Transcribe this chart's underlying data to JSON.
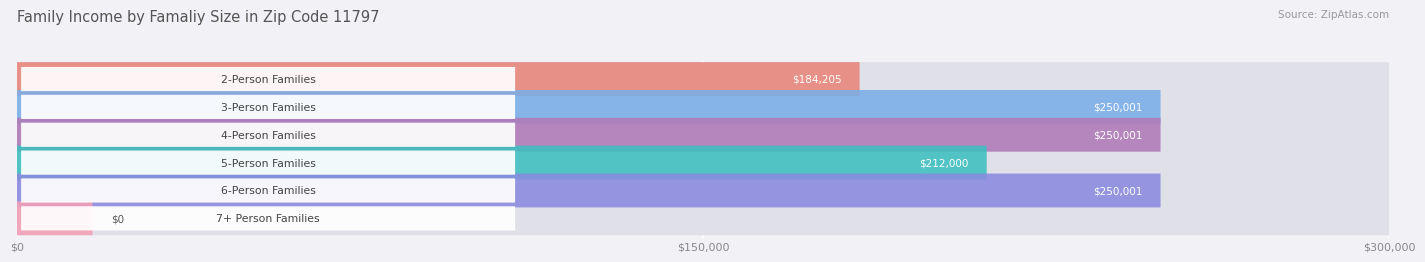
{
  "title": "Family Income by Famaliy Size in Zip Code 11797",
  "source": "Source: ZipAtlas.com",
  "categories": [
    "2-Person Families",
    "3-Person Families",
    "4-Person Families",
    "5-Person Families",
    "6-Person Families",
    "7+ Person Families"
  ],
  "values": [
    184205,
    250001,
    250001,
    212000,
    250001,
    0
  ],
  "labels": [
    "$184,205",
    "$250,001",
    "$250,001",
    "$212,000",
    "$250,001",
    "$0"
  ],
  "bar_colors": [
    "#E8857A",
    "#7AAEE8",
    "#B07AB8",
    "#3DBFBF",
    "#8A8AE0",
    "#F4A0B5"
  ],
  "bar_bg_color": "#E0E0E8",
  "xmax": 300000,
  "xticks": [
    0,
    150000,
    300000
  ],
  "xticklabels": [
    "$0",
    "$150,000",
    "$300,000"
  ],
  "background_color": "#F2F2F6",
  "title_color": "#555555",
  "source_color": "#999999"
}
